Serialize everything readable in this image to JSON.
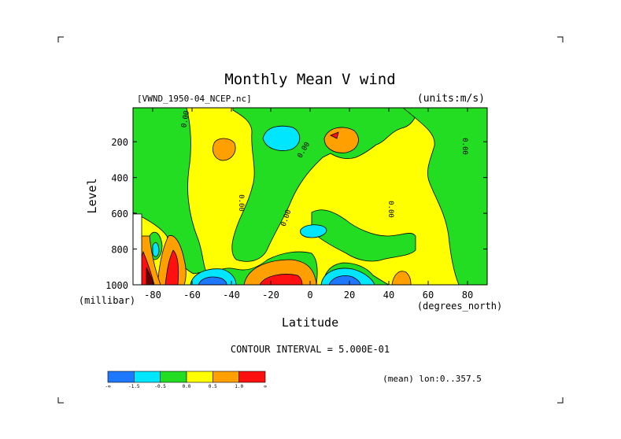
{
  "chart_data": {
    "type": "heatmap",
    "title": "Monthly Mean V wind",
    "file_label": "[VWND_1950-04_NCEP.nc]",
    "units_label": "(units:m/s)",
    "xlabel": "Latitude",
    "x_unit": "(degrees_north)",
    "ylabel": "Level",
    "y_unit": "(millibar)",
    "xlim": [
      -90,
      90
    ],
    "ylim": [
      1000,
      10
    ],
    "y_reversed": true,
    "x_ticks": [
      -80,
      -60,
      -40,
      -20,
      0,
      20,
      40,
      60,
      80
    ],
    "x_tick_labels": [
      "-80",
      "-60",
      "-40",
      "-20",
      "0",
      "20",
      "40",
      "60",
      "80"
    ],
    "y_ticks": [
      200,
      400,
      600,
      800,
      1000
    ],
    "y_tick_labels": [
      "200",
      "400",
      "600",
      "800",
      "1000"
    ],
    "contour_interval_text": "CONTOUR INTERVAL = 5.000E-01",
    "mean_text": "(mean) lon:0..357.5",
    "zero_contour_label": "0.00",
    "colorbar": {
      "colors": [
        "#1e78ff",
        "#00e6ff",
        "#22dd22",
        "#ffff00",
        "#ffa000",
        "#ff1010"
      ],
      "tick_labels": [
        "-∞",
        "-1.5",
        "-0.5",
        "0.0",
        "0.5",
        "1.0",
        "∞"
      ]
    },
    "regions": [
      {
        "level": "negative",
        "color": "#00e6ff",
        "lat": -14,
        "p": 100
      },
      {
        "level": "positive-strong",
        "color": "#ffa000",
        "lat": 12,
        "p": 150
      },
      {
        "level": "maximum",
        "color": "#ff1010",
        "lat": 12,
        "p": 160
      },
      {
        "level": "positive-strong",
        "color": "#ffa000",
        "lat": -44,
        "p": 200
      },
      {
        "level": "negative",
        "color": "#00e6ff",
        "lat": 2,
        "p": 690
      },
      {
        "level": "negative-strong",
        "color": "#1e78ff",
        "lat": 20,
        "p": 975
      },
      {
        "level": "negative-strong",
        "color": "#1e78ff",
        "lat": -48,
        "p": 975
      },
      {
        "level": "maximum",
        "color": "#ff1010",
        "lat": -18,
        "p": 975
      },
      {
        "level": "positive-strong",
        "color": "#ffa000",
        "lat": 46,
        "p": 960
      }
    ]
  }
}
